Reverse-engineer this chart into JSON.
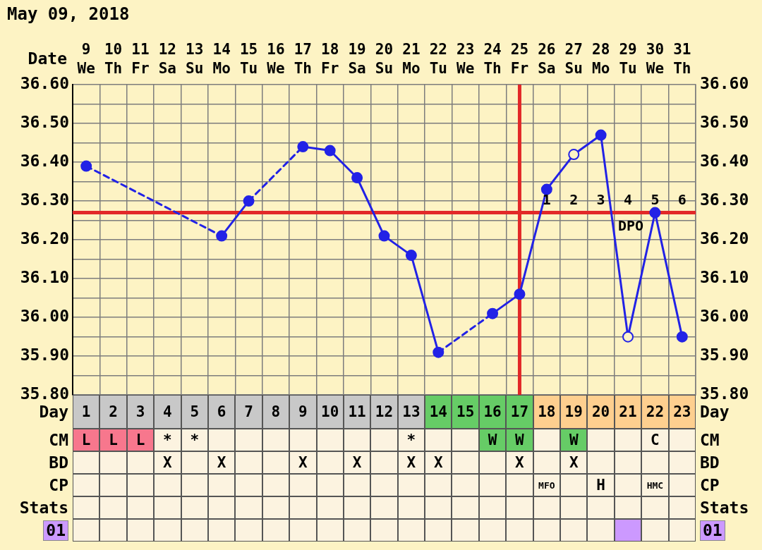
{
  "chart_data": [
    {
      "type": "line",
      "title": "May 09, 2018",
      "xlabel": "Date",
      "categories": [
        "9 We",
        "10 Th",
        "11 Fr",
        "12 Sa",
        "13 Su",
        "14 Mo",
        "15 Tu",
        "16 We",
        "17 Th",
        "18 Fr",
        "19 Sa",
        "20 Su",
        "21 Mo",
        "22 Tu",
        "23 We",
        "24 Th",
        "25 Fr",
        "26 Sa",
        "27 Su",
        "28 Mo",
        "29 Tu",
        "30 We",
        "31 Th"
      ],
      "series": [
        {
          "color": "#2222e6",
          "values": [
            36.39,
            null,
            null,
            null,
            null,
            36.21,
            36.3,
            null,
            36.44,
            36.43,
            36.36,
            36.21,
            36.16,
            35.91,
            null,
            36.01,
            36.06,
            36.33,
            36.42,
            36.47,
            35.95,
            36.27,
            35.95
          ],
          "colors": [
            "#2222e6",
            null,
            null,
            null,
            null,
            "#2222e6",
            "#2222e6",
            null,
            "#2222e6",
            "#2222e6",
            "#2222e6",
            "#2222e6",
            "#2222e6",
            "#2222e6",
            null,
            "#2222e6",
            "#2222e6",
            "#2222e6",
            "#fdf3c4",
            "#2222e6",
            "#fdf3c4",
            "#2222e6",
            "#2222e6"
          ]
        }
      ],
      "ylim": [
        35.8,
        36.6
      ],
      "yticks": [
        {
          "value": 35.8,
          "label": "35.80"
        },
        {
          "value": 35.85,
          "label": null
        },
        {
          "value": 35.9,
          "label": "35.90"
        },
        {
          "value": 35.95,
          "label": null
        },
        {
          "value": 36.0,
          "label": "36.00"
        },
        {
          "value": 36.05,
          "label": null
        },
        {
          "value": 36.1,
          "label": "36.10"
        },
        {
          "value": 36.15,
          "label": null
        },
        {
          "value": 36.2,
          "label": "36.20"
        },
        {
          "value": 36.25,
          "label": null
        },
        {
          "value": 36.3,
          "label": "36.30"
        },
        {
          "value": 36.35,
          "label": null
        },
        {
          "value": 36.4,
          "label": "36.40"
        },
        {
          "value": 36.45,
          "label": null
        },
        {
          "value": 36.5,
          "label": "36.50"
        },
        {
          "value": 36.55,
          "label": null
        },
        {
          "value": 36.6,
          "label": "36.60"
        }
      ],
      "y2lim": [
        35.8,
        36.6
      ],
      "y2ticks": [
        {
          "value": 35.8,
          "label": "35.80"
        },
        {
          "value": 35.85,
          "label": null
        },
        {
          "value": 35.9,
          "label": "35.90"
        },
        {
          "value": 35.95,
          "label": null
        },
        {
          "value": 36.0,
          "label": "36.00"
        },
        {
          "value": 36.05,
          "label": null
        },
        {
          "value": 36.1,
          "label": "36.10"
        },
        {
          "value": 36.15,
          "label": null
        },
        {
          "value": 36.2,
          "label": "36.20"
        },
        {
          "value": 36.25,
          "label": null
        },
        {
          "value": 36.3,
          "label": "36.30"
        },
        {
          "value": 36.35,
          "label": null
        },
        {
          "value": 36.4,
          "label": "36.40"
        },
        {
          "value": 36.45,
          "label": null
        },
        {
          "value": 36.5,
          "label": "36.50"
        },
        {
          "value": 36.55,
          "label": null
        },
        {
          "value": 36.6,
          "label": "36.60"
        }
      ],
      "ref_lines": [
        {
          "axis": "y",
          "value": 36.27,
          "color": "#e22828"
        },
        {
          "axis": "x",
          "value": "25 Fr",
          "color": "#e22828"
        }
      ],
      "annotations": [
        {
          "text": "1",
          "x": "26 Sa",
          "y": 36.27
        },
        {
          "text": "2",
          "x": "27 Su",
          "y": 36.27
        },
        {
          "text": "3",
          "x": "28 Mo",
          "y": 36.27
        },
        {
          "text": "4",
          "x": "29 Tu",
          "y": 36.27
        },
        {
          "text": "5",
          "x": "30 We",
          "y": 36.27
        },
        {
          "text": "6",
          "x": "31 Th",
          "y": 36.27
        },
        {
          "text": "DPO",
          "x": "29 Tu",
          "y": 36.27
        }
      ],
      "grid": true,
      "marker": "circle",
      "line_style": "solid"
    },
    {
      "type": "heatmap",
      "x": [
        1,
        2,
        3,
        4,
        5,
        6,
        7,
        8,
        9,
        10,
        11,
        12,
        13,
        14,
        15,
        16,
        17,
        18,
        19,
        20,
        21,
        22,
        23
      ],
      "xlim": [
        0.5,
        23.5
      ],
      "xticks": [
        1,
        2,
        3,
        4,
        5,
        6,
        7,
        8,
        9,
        10,
        11,
        12,
        13,
        14,
        15,
        16,
        17,
        18,
        19,
        20,
        21,
        22,
        23
      ],
      "y_categories": [
        "Day",
        "CM",
        "BD",
        "CP",
        "Stats",
        "01"
      ],
      "y2_categories": [
        "Day",
        "CM",
        "BD",
        "CP",
        "Stats",
        "01"
      ],
      "cells": [
        [
          null,
          null,
          null,
          null,
          null,
          null,
          null,
          null,
          null,
          null,
          null,
          null,
          null,
          null,
          null,
          null,
          null,
          null,
          null,
          null,
          null,
          null,
          null
        ],
        [
          null,
          null,
          null,
          null,
          null,
          null,
          null,
          null,
          null,
          null,
          null,
          null,
          null,
          null,
          null,
          null,
          null,
          null,
          null,
          null,
          null,
          null,
          null
        ],
        [
          null,
          null,
          null,
          null,
          null,
          null,
          null,
          null,
          null,
          null,
          null,
          null,
          null,
          null,
          null,
          null,
          null,
          null,
          null,
          null,
          null,
          null,
          null
        ],
        [
          null,
          null,
          null,
          null,
          null,
          null,
          null,
          null,
          null,
          null,
          null,
          null,
          null,
          null,
          null,
          null,
          null,
          null,
          null,
          null,
          null,
          null,
          null
        ],
        [
          null,
          null,
          null,
          null,
          null,
          null,
          null,
          null,
          null,
          null,
          null,
          null,
          null,
          null,
          null,
          null,
          null,
          null,
          null,
          null,
          null,
          null,
          null
        ],
        [
          null,
          null,
          null,
          null,
          null,
          null,
          null,
          null,
          null,
          null,
          null,
          null,
          null,
          null,
          null,
          null,
          null,
          null,
          null,
          null,
          null,
          null,
          null
        ]
      ],
      "cell_labels": [
        [
          null,
          null,
          null,
          null,
          null,
          null,
          null,
          null,
          null,
          null,
          null,
          null,
          null,
          null,
          null,
          null,
          null,
          null,
          null,
          null,
          null,
          null,
          null
        ],
        [
          "L",
          "L",
          "L",
          "*",
          "*",
          null,
          null,
          null,
          null,
          null,
          null,
          null,
          "*",
          null,
          null,
          "W",
          "W",
          null,
          "W",
          null,
          null,
          "C",
          null
        ],
        [
          null,
          null,
          null,
          "X",
          null,
          "X",
          null,
          null,
          "X",
          null,
          "X",
          null,
          "X",
          "X",
          null,
          null,
          "X",
          null,
          "X",
          null,
          null,
          null,
          null
        ],
        [
          null,
          null,
          null,
          null,
          null,
          null,
          null,
          null,
          null,
          null,
          null,
          null,
          null,
          null,
          null,
          null,
          null,
          "MFO",
          null,
          "H",
          null,
          "HMC",
          null
        ],
        [
          null,
          null,
          null,
          null,
          null,
          null,
          null,
          null,
          null,
          null,
          null,
          null,
          null,
          null,
          null,
          null,
          null,
          null,
          null,
          null,
          null,
          null,
          null
        ],
        [
          null,
          null,
          null,
          null,
          null,
          null,
          null,
          null,
          null,
          null,
          null,
          null,
          null,
          null,
          null,
          null,
          null,
          null,
          null,
          null,
          null,
          null,
          null
        ]
      ],
      "colors": [
        [
          "#c8c8c8",
          "#c8c8c8",
          "#c8c8c8",
          "#c8c8c8",
          "#c8c8c8",
          "#c8c8c8",
          "#c8c8c8",
          "#c8c8c8",
          "#c8c8c8",
          "#c8c8c8",
          "#c8c8c8",
          "#c8c8c8",
          "#c8c8c8",
          "#66cc66",
          "#66cc66",
          "#66cc66",
          "#66cc66",
          "#fecf8f",
          "#fecf8f",
          "#fecf8f",
          "#fecf8f",
          "#fecf8f",
          "#fecf8f"
        ],
        [
          "#f7778d",
          "#f7778d",
          "#f7778d",
          null,
          null,
          null,
          null,
          null,
          null,
          null,
          null,
          null,
          null,
          null,
          null,
          "#66cc66",
          "#66cc66",
          null,
          "#66cc66",
          null,
          null,
          null,
          null
        ],
        [
          null,
          null,
          null,
          null,
          null,
          null,
          null,
          null,
          null,
          null,
          null,
          null,
          null,
          null,
          null,
          null,
          null,
          null,
          null,
          null,
          null,
          null,
          null
        ],
        [
          null,
          null,
          null,
          null,
          null,
          null,
          null,
          null,
          null,
          null,
          null,
          null,
          null,
          null,
          null,
          null,
          null,
          null,
          null,
          null,
          null,
          null,
          null
        ],
        [
          null,
          null,
          null,
          null,
          null,
          null,
          null,
          null,
          null,
          null,
          null,
          null,
          null,
          null,
          null,
          null,
          null,
          null,
          null,
          null,
          null,
          null,
          null
        ],
        [
          null,
          null,
          null,
          null,
          null,
          null,
          null,
          null,
          null,
          null,
          null,
          null,
          null,
          null,
          null,
          null,
          null,
          null,
          null,
          null,
          "#cc99ff",
          null,
          null
        ]
      ]
    }
  ]
}
